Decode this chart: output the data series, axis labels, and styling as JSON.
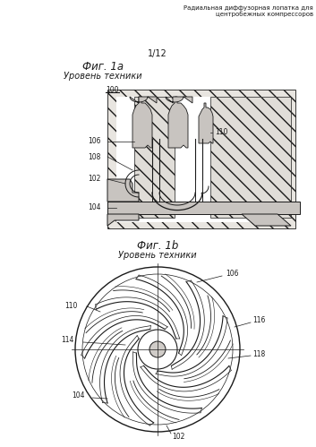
{
  "header_line1": "Радиальная диффузорная лопатка для",
  "header_line2": "центробежных компрессоров",
  "page_label": "1/12",
  "fig1a_title": "Фиг. 1а",
  "fig1a_subtitle": "Уровень техники",
  "fig1b_title": "Фиг. 1b",
  "fig1b_subtitle": "Уровень техники",
  "bg_color": "#ffffff",
  "line_color": "#1a1a1a",
  "hatch_face": "#d4d0cc",
  "dot_face": "#c8c4c0"
}
